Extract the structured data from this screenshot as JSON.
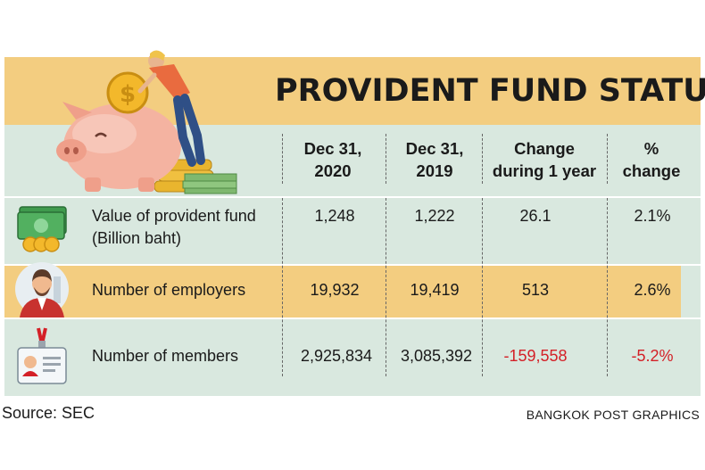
{
  "infographic": {
    "title": "PROVIDENT FUND STATUS",
    "source": "Source: SEC",
    "credit": "BANGKOK POST GRAPHICS",
    "colors": {
      "accent": "#f3cd80",
      "panel": "#d9e8df",
      "negative": "#d42027"
    },
    "icons": [
      "piggy-bank-with-coin",
      "money-stack-with-coins",
      "businessman-avatar",
      "id-badge"
    ]
  },
  "chart_data": {
    "type": "table",
    "title": "PROVIDENT FUND STATUS",
    "columns": [
      "Dec 31, 2020",
      "Dec 31, 2019",
      "Change during 1 year",
      "% change"
    ],
    "column_headers": [
      {
        "line1": "Dec 31,",
        "line2": "2020"
      },
      {
        "line1": "Dec 31,",
        "line2": "2019"
      },
      {
        "line1": "Change",
        "line2": "during 1 year"
      },
      {
        "line1": "%",
        "line2": "change"
      }
    ],
    "rows": [
      {
        "label": "Value of provident fund",
        "sublabel": "(Billion baht)",
        "icon": "money-stack-with-coins",
        "display": [
          "1,248",
          "1,222",
          "26.1",
          "2.1%"
        ],
        "values": [
          1248,
          1222,
          26.1,
          2.1
        ]
      },
      {
        "label": "Number of employers",
        "sublabel": "",
        "icon": "businessman-avatar",
        "display": [
          "19,932",
          "19,419",
          "513",
          "2.6%"
        ],
        "values": [
          19932,
          19419,
          513,
          2.6
        ]
      },
      {
        "label": "Number of members",
        "sublabel": "",
        "icon": "id-badge",
        "display": [
          "2,925,834",
          "3,085,392",
          "-159,558",
          "-5.2%"
        ],
        "values": [
          2925834,
          3085392,
          -159558,
          -5.2
        ]
      }
    ]
  }
}
